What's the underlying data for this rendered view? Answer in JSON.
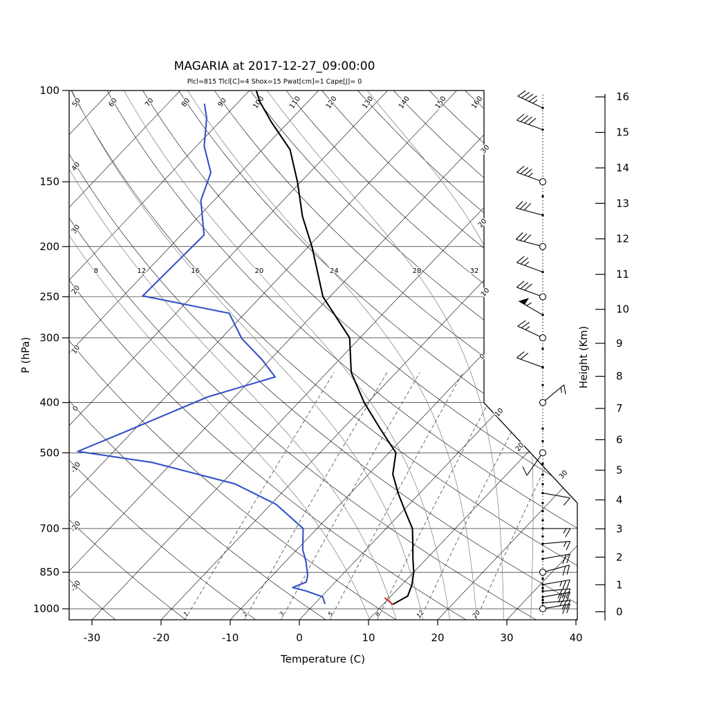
{
  "title": "MAGARIA at 2017-12-27_09:00:00",
  "params_line": "Plcl=815 Tlcl[C]=4 Shox=15 Pwat[cm]=1 Cape[J]= 0",
  "axes": {
    "x_label": "Temperature (C)",
    "y_left_label": "P (hPa)",
    "y_right_label": "Height (Km)",
    "pressure_ticks": [
      100,
      150,
      200,
      250,
      300,
      400,
      500,
      700,
      850,
      1000
    ],
    "temp_ticks": [
      -30,
      -20,
      -10,
      0,
      10,
      20,
      30,
      40
    ],
    "height_ticks_km": [
      0,
      1,
      2,
      3,
      4,
      5,
      6,
      7,
      8,
      9,
      10,
      11,
      12,
      13,
      14,
      15,
      16
    ]
  },
  "colors": {
    "temperature": "#000000",
    "dewpoint": "#3250c8",
    "parcel": "#cc1111",
    "params_text": "#d2691e",
    "grid": "#000000",
    "moist_adiabat": "#787878",
    "mixing_ratio": "#444444"
  },
  "chart_data": {
    "type": "line",
    "variant": "skew-t-log-p-sounding",
    "station": "MAGARIA",
    "datetime": "2017-12-27_09:00:00",
    "indices": {
      "Plcl": 815,
      "Tlcl_C": 4,
      "Shox": 15,
      "Pwat_cm": 1,
      "Cape_J": 0
    },
    "y_axis": {
      "label": "P (hPa)",
      "scale": "log",
      "range_hpa": [
        100,
        1050
      ]
    },
    "x_axis": {
      "label": "Temperature (C)",
      "range_c": [
        -30,
        40
      ],
      "skew": true
    },
    "series": [
      {
        "name": "temperature",
        "units": [
          "hPa",
          "C"
        ],
        "points": [
          [
            980,
            11.4
          ],
          [
            945,
            12.4
          ],
          [
            900,
            11.5
          ],
          [
            850,
            10.0
          ],
          [
            800,
            8.0
          ],
          [
            750,
            6.0
          ],
          [
            700,
            3.8
          ],
          [
            650,
            0.5
          ],
          [
            600,
            -3.0
          ],
          [
            550,
            -6.5
          ],
          [
            500,
            -9.0
          ],
          [
            450,
            -14.5
          ],
          [
            400,
            -20.5
          ],
          [
            350,
            -26.5
          ],
          [
            300,
            -31.5
          ],
          [
            250,
            -41.0
          ],
          [
            200,
            -49.5
          ],
          [
            175,
            -55.0
          ],
          [
            150,
            -60.5
          ],
          [
            130,
            -66.0
          ],
          [
            115,
            -72.5
          ],
          [
            105,
            -77.0
          ],
          [
            100,
            -79.0
          ]
        ]
      },
      {
        "name": "dewpoint",
        "units": [
          "hPa",
          "C"
        ],
        "points": [
          [
            978,
            1.5
          ],
          [
            948,
            0.2
          ],
          [
            923,
            -3.1
          ],
          [
            910,
            -5.4
          ],
          [
            888,
            -4.2
          ],
          [
            862,
            -4.9
          ],
          [
            812,
            -7.0
          ],
          [
            768,
            -9.2
          ],
          [
            700,
            -12.0
          ],
          [
            629,
            -19.2
          ],
          [
            574,
            -28.0
          ],
          [
            522,
            -42.9
          ],
          [
            497,
            -55.2
          ],
          [
            454,
            -50.9
          ],
          [
            390,
            -43.9
          ],
          [
            357,
            -36.9
          ],
          [
            331,
            -41.1
          ],
          [
            301,
            -47.0
          ],
          [
            269,
            -52.3
          ],
          [
            249,
            -67.2
          ],
          [
            190,
            -66.7
          ],
          [
            163,
            -71.9
          ],
          [
            144,
            -74.3
          ],
          [
            128,
            -78.9
          ],
          [
            113,
            -82.4
          ],
          [
            106,
            -84.7
          ]
        ]
      },
      {
        "name": "parcel",
        "units": [
          "hPa",
          "C"
        ],
        "points": [
          [
            982,
            11.5
          ],
          [
            952,
            9.3
          ]
        ]
      }
    ],
    "guides": {
      "isotherms_c": {
        "start": -110,
        "end": 40,
        "step": 10
      },
      "dry_adiabats_theta_c": {
        "start": -30,
        "end": 160,
        "step": 10
      },
      "moist_adiabats_thetaw_c": [
        8,
        12,
        16,
        20,
        24,
        28,
        32
      ],
      "mixing_ratio_g_kg": [
        1,
        2,
        3,
        5,
        8,
        12,
        20
      ]
    },
    "grid_label_values": {
      "dry_adiabat_top": [
        "50",
        "60",
        "70",
        "80",
        "90",
        "100",
        "110",
        "120",
        "130",
        "140",
        "150",
        "160"
      ],
      "dry_adiabat_left": [
        "40",
        "30",
        "20",
        "10",
        "0",
        "-10",
        "-20",
        "-30"
      ],
      "moist_adiabat": [
        "8",
        "12",
        "16",
        "20",
        "24",
        "28",
        "32"
      ],
      "mixing_ratio_bottom": [
        "1",
        "2",
        "3",
        "5",
        "8",
        "12",
        "20"
      ]
    },
    "right_edge_labels": [
      {
        "text": "30",
        "x": 704,
        "y": 218
      },
      {
        "text": "20",
        "x": 700,
        "y": 325
      },
      {
        "text": "10",
        "x": 704,
        "y": 425
      },
      {
        "text": "0",
        "x": 700,
        "y": 518
      },
      {
        "text": "10",
        "x": 724,
        "y": 599
      },
      {
        "text": "20",
        "x": 754,
        "y": 649
      },
      {
        "text": "30",
        "x": 817,
        "y": 689
      }
    ],
    "wind_barbs": [
      {
        "p": 108,
        "dir": 295,
        "spd": 45,
        "marker": "dot"
      },
      {
        "p": 119,
        "dir": 290,
        "spd": 40,
        "marker": "dot"
      },
      {
        "p": 150,
        "dir": 290,
        "spd": 35,
        "marker": "circle"
      },
      {
        "p": 174,
        "dir": 285,
        "spd": 30,
        "marker": "dot"
      },
      {
        "p": 200,
        "dir": 285,
        "spd": 30,
        "marker": "circle"
      },
      {
        "p": 224,
        "dir": 290,
        "spd": 25,
        "marker": "dot"
      },
      {
        "p": 250,
        "dir": 290,
        "spd": 30,
        "marker": "circle"
      },
      {
        "p": 271,
        "dir": 300,
        "spd": 55,
        "marker": "dot"
      },
      {
        "p": 300,
        "dir": 295,
        "spd": 25,
        "marker": "circle"
      },
      {
        "p": 342,
        "dir": 290,
        "spd": 20,
        "marker": "dot"
      },
      {
        "p": 400,
        "dir": 50,
        "spd": 15,
        "marker": "circle"
      },
      {
        "p": 449,
        "dir": 0,
        "spd": 0,
        "marker": "dot"
      },
      {
        "p": 500,
        "dir": 215,
        "spd": 10,
        "marker": "circle"
      },
      {
        "p": 551,
        "dir": 0,
        "spd": 0,
        "marker": "dot"
      },
      {
        "p": 598,
        "dir": 100,
        "spd": 10,
        "marker": "dot"
      },
      {
        "p": 648,
        "dir": 0,
        "spd": 0,
        "marker": "dot"
      },
      {
        "p": 700,
        "dir": 90,
        "spd": 15,
        "marker": "dot"
      },
      {
        "p": 749,
        "dir": 85,
        "spd": 15,
        "marker": "dot"
      },
      {
        "p": 801,
        "dir": 80,
        "spd": 20,
        "marker": "dot"
      },
      {
        "p": 850,
        "dir": 75,
        "spd": 20,
        "marker": "circle"
      },
      {
        "p": 898,
        "dir": 80,
        "spd": 25,
        "marker": "dot"
      },
      {
        "p": 925,
        "dir": 85,
        "spd": 30,
        "marker": "dot"
      },
      {
        "p": 949,
        "dir": 80,
        "spd": 30,
        "marker": "dot"
      },
      {
        "p": 974,
        "dir": 85,
        "spd": 25,
        "marker": "dot"
      },
      {
        "p": 1000,
        "dir": 80,
        "spd": 20,
        "marker": "circle"
      }
    ],
    "staff_extra_dots_hpa": [
      160,
      315,
      370,
      475,
      525,
      575,
      625,
      675,
      725,
      775,
      875,
      912,
      962,
      988
    ]
  }
}
